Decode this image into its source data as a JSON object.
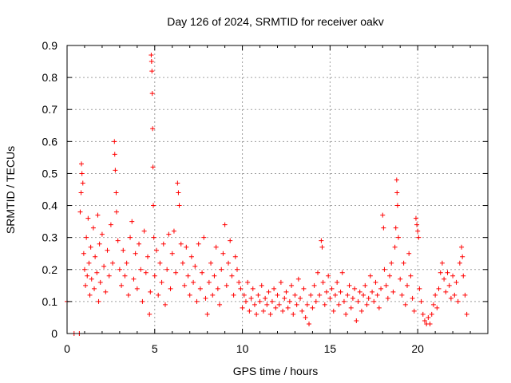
{
  "chart_data": {
    "type": "scatter",
    "title": "Day 126 of 2024, SRMTID for receiver oakv",
    "xlabel": "GPS time / hours",
    "ylabel": "SRMTID / TECUs",
    "xlim": [
      0,
      24
    ],
    "ylim": [
      0,
      0.9
    ],
    "xticks": [
      0,
      5,
      10,
      15,
      20
    ],
    "xtick_labels": [
      "0",
      "5",
      "10",
      "15",
      "20"
    ],
    "yticks": [
      0,
      0.1,
      0.2,
      0.3,
      0.4,
      0.5,
      0.6,
      0.7,
      0.8,
      0.9
    ],
    "ytick_labels": [
      "0",
      "0.1",
      "0.2",
      "0.3",
      "0.4",
      "0.5",
      "0.6",
      "0.7",
      "0.8",
      "0.9"
    ],
    "grid": true,
    "marker": "+",
    "color": "#ff0000",
    "series": [
      {
        "name": "SRMTID",
        "points": [
          [
            0.0,
            0.1
          ],
          [
            0.4,
            0.0
          ],
          [
            0.7,
            0.0
          ],
          [
            0.75,
            0.38
          ],
          [
            0.8,
            0.44
          ],
          [
            0.82,
            0.53
          ],
          [
            0.85,
            0.5
          ],
          [
            0.9,
            0.47
          ],
          [
            0.95,
            0.25
          ],
          [
            1.0,
            0.2
          ],
          [
            1.05,
            0.15
          ],
          [
            1.1,
            0.3
          ],
          [
            1.15,
            0.18
          ],
          [
            1.2,
            0.36
          ],
          [
            1.25,
            0.22
          ],
          [
            1.3,
            0.12
          ],
          [
            1.35,
            0.27
          ],
          [
            1.4,
            0.17
          ],
          [
            1.5,
            0.33
          ],
          [
            1.55,
            0.14
          ],
          [
            1.6,
            0.24
          ],
          [
            1.7,
            0.19
          ],
          [
            1.75,
            0.37
          ],
          [
            1.8,
            0.1
          ],
          [
            1.85,
            0.28
          ],
          [
            1.9,
            0.16
          ],
          [
            2.0,
            0.31
          ],
          [
            2.1,
            0.21
          ],
          [
            2.2,
            0.13
          ],
          [
            2.3,
            0.26
          ],
          [
            2.4,
            0.18
          ],
          [
            2.5,
            0.34
          ],
          [
            2.6,
            0.22
          ],
          [
            2.7,
            0.6
          ],
          [
            2.72,
            0.56
          ],
          [
            2.75,
            0.51
          ],
          [
            2.8,
            0.44
          ],
          [
            2.82,
            0.38
          ],
          [
            2.9,
            0.29
          ],
          [
            3.0,
            0.2
          ],
          [
            3.1,
            0.15
          ],
          [
            3.2,
            0.26
          ],
          [
            3.3,
            0.18
          ],
          [
            3.4,
            0.22
          ],
          [
            3.5,
            0.12
          ],
          [
            3.6,
            0.3
          ],
          [
            3.7,
            0.35
          ],
          [
            3.8,
            0.17
          ],
          [
            3.9,
            0.25
          ],
          [
            4.0,
            0.14
          ],
          [
            4.1,
            0.28
          ],
          [
            4.2,
            0.2
          ],
          [
            4.3,
            0.1
          ],
          [
            4.4,
            0.32
          ],
          [
            4.5,
            0.19
          ],
          [
            4.6,
            0.24
          ],
          [
            4.7,
            0.06
          ],
          [
            4.75,
            0.13
          ],
          [
            4.8,
            0.87
          ],
          [
            4.82,
            0.85
          ],
          [
            4.84,
            0.82
          ],
          [
            4.86,
            0.75
          ],
          [
            4.88,
            0.64
          ],
          [
            4.9,
            0.52
          ],
          [
            4.92,
            0.4
          ],
          [
            4.95,
            0.3
          ],
          [
            5.0,
            0.18
          ],
          [
            5.1,
            0.26
          ],
          [
            5.2,
            0.12
          ],
          [
            5.3,
            0.22
          ],
          [
            5.4,
            0.16
          ],
          [
            5.5,
            0.28
          ],
          [
            5.6,
            0.09
          ],
          [
            5.7,
            0.2
          ],
          [
            5.8,
            0.31
          ],
          [
            5.9,
            0.14
          ],
          [
            6.0,
            0.25
          ],
          [
            6.1,
            0.32
          ],
          [
            6.2,
            0.19
          ],
          [
            6.3,
            0.47
          ],
          [
            6.35,
            0.44
          ],
          [
            6.4,
            0.4
          ],
          [
            6.5,
            0.28
          ],
          [
            6.6,
            0.22
          ],
          [
            6.7,
            0.15
          ],
          [
            6.8,
            0.27
          ],
          [
            6.9,
            0.18
          ],
          [
            7.0,
            0.12
          ],
          [
            7.1,
            0.24
          ],
          [
            7.2,
            0.16
          ],
          [
            7.3,
            0.21
          ],
          [
            7.4,
            0.1
          ],
          [
            7.5,
            0.28
          ],
          [
            7.6,
            0.14
          ],
          [
            7.7,
            0.19
          ],
          [
            7.8,
            0.3
          ],
          [
            7.9,
            0.11
          ],
          [
            8.0,
            0.06
          ],
          [
            8.1,
            0.16
          ],
          [
            8.2,
            0.22
          ],
          [
            8.3,
            0.12
          ],
          [
            8.4,
            0.18
          ],
          [
            8.5,
            0.27
          ],
          [
            8.6,
            0.14
          ],
          [
            8.7,
            0.09
          ],
          [
            8.8,
            0.2
          ],
          [
            8.9,
            0.25
          ],
          [
            9.0,
            0.34
          ],
          [
            9.1,
            0.15
          ],
          [
            9.2,
            0.22
          ],
          [
            9.3,
            0.29
          ],
          [
            9.4,
            0.18
          ],
          [
            9.5,
            0.12
          ],
          [
            9.6,
            0.24
          ],
          [
            9.7,
            0.2
          ],
          [
            9.8,
            0.16
          ],
          [
            9.9,
            0.14
          ],
          [
            10.0,
            0.08
          ],
          [
            10.1,
            0.12
          ],
          [
            10.2,
            0.1
          ],
          [
            10.3,
            0.16
          ],
          [
            10.4,
            0.07
          ],
          [
            10.5,
            0.11
          ],
          [
            10.6,
            0.14
          ],
          [
            10.7,
            0.09
          ],
          [
            10.8,
            0.06
          ],
          [
            10.9,
            0.12
          ],
          [
            11.0,
            0.1
          ],
          [
            11.1,
            0.15
          ],
          [
            11.2,
            0.07
          ],
          [
            11.3,
            0.11
          ],
          [
            11.4,
            0.09
          ],
          [
            11.5,
            0.13
          ],
          [
            11.6,
            0.06
          ],
          [
            11.7,
            0.1
          ],
          [
            11.8,
            0.14
          ],
          [
            11.9,
            0.08
          ],
          [
            12.0,
            0.12
          ],
          [
            12.1,
            0.09
          ],
          [
            12.2,
            0.16
          ],
          [
            12.3,
            0.07
          ],
          [
            12.4,
            0.11
          ],
          [
            12.5,
            0.13
          ],
          [
            12.6,
            0.08
          ],
          [
            12.7,
            0.1
          ],
          [
            12.8,
            0.15
          ],
          [
            12.9,
            0.06
          ],
          [
            13.0,
            0.12
          ],
          [
            13.1,
            0.09
          ],
          [
            13.2,
            0.17
          ],
          [
            13.3,
            0.11
          ],
          [
            13.4,
            0.07
          ],
          [
            13.5,
            0.14
          ],
          [
            13.6,
            0.05
          ],
          [
            13.7,
            0.09
          ],
          [
            13.8,
            0.03
          ],
          [
            13.9,
            0.12
          ],
          [
            14.0,
            0.08
          ],
          [
            14.1,
            0.15
          ],
          [
            14.2,
            0.1
          ],
          [
            14.3,
            0.19
          ],
          [
            14.4,
            0.12
          ],
          [
            14.5,
            0.29
          ],
          [
            14.55,
            0.27
          ],
          [
            14.6,
            0.16
          ],
          [
            14.7,
            0.09
          ],
          [
            14.8,
            0.13
          ],
          [
            14.9,
            0.18
          ],
          [
            15.0,
            0.11
          ],
          [
            15.1,
            0.14
          ],
          [
            15.2,
            0.07
          ],
          [
            15.3,
            0.12
          ],
          [
            15.4,
            0.16
          ],
          [
            15.5,
            0.09
          ],
          [
            15.6,
            0.13
          ],
          [
            15.7,
            0.19
          ],
          [
            15.8,
            0.1
          ],
          [
            15.9,
            0.06
          ],
          [
            16.0,
            0.12
          ],
          [
            16.1,
            0.15
          ],
          [
            16.2,
            0.08
          ],
          [
            16.3,
            0.11
          ],
          [
            16.4,
            0.14
          ],
          [
            16.5,
            0.04
          ],
          [
            16.6,
            0.1
          ],
          [
            16.7,
            0.13
          ],
          [
            16.8,
            0.07
          ],
          [
            16.9,
            0.12
          ],
          [
            17.0,
            0.15
          ],
          [
            17.1,
            0.09
          ],
          [
            17.2,
            0.11
          ],
          [
            17.3,
            0.18
          ],
          [
            17.4,
            0.13
          ],
          [
            17.5,
            0.1
          ],
          [
            17.6,
            0.16
          ],
          [
            17.7,
            0.12
          ],
          [
            17.8,
            0.08
          ],
          [
            17.9,
            0.14
          ],
          [
            18.0,
            0.37
          ],
          [
            18.05,
            0.33
          ],
          [
            18.1,
            0.2
          ],
          [
            18.2,
            0.15
          ],
          [
            18.3,
            0.11
          ],
          [
            18.4,
            0.18
          ],
          [
            18.5,
            0.22
          ],
          [
            18.6,
            0.13
          ],
          [
            18.7,
            0.27
          ],
          [
            18.75,
            0.33
          ],
          [
            18.8,
            0.48
          ],
          [
            18.82,
            0.44
          ],
          [
            18.85,
            0.4
          ],
          [
            18.9,
            0.3
          ],
          [
            19.0,
            0.17
          ],
          [
            19.1,
            0.12
          ],
          [
            19.2,
            0.22
          ],
          [
            19.3,
            0.09
          ],
          [
            19.4,
            0.15
          ],
          [
            19.5,
            0.25
          ],
          [
            19.6,
            0.18
          ],
          [
            19.7,
            0.11
          ],
          [
            19.8,
            0.07
          ],
          [
            19.9,
            0.36
          ],
          [
            19.95,
            0.34
          ],
          [
            20.0,
            0.32
          ],
          [
            20.05,
            0.3
          ],
          [
            20.1,
            0.14
          ],
          [
            20.2,
            0.1
          ],
          [
            20.3,
            0.06
          ],
          [
            20.4,
            0.04
          ],
          [
            20.5,
            0.03
          ],
          [
            20.6,
            0.05
          ],
          [
            20.7,
            0.03
          ],
          [
            20.8,
            0.06
          ],
          [
            20.9,
            0.09
          ],
          [
            21.0,
            0.12
          ],
          [
            21.1,
            0.08
          ],
          [
            21.2,
            0.14
          ],
          [
            21.3,
            0.19
          ],
          [
            21.4,
            0.22
          ],
          [
            21.5,
            0.17
          ],
          [
            21.6,
            0.13
          ],
          [
            21.7,
            0.19
          ],
          [
            21.8,
            0.15
          ],
          [
            21.9,
            0.11
          ],
          [
            22.0,
            0.18
          ],
          [
            22.1,
            0.12
          ],
          [
            22.2,
            0.16
          ],
          [
            22.3,
            0.1
          ],
          [
            22.4,
            0.22
          ],
          [
            22.5,
            0.27
          ],
          [
            22.55,
            0.24
          ],
          [
            22.6,
            0.18
          ],
          [
            22.7,
            0.12
          ],
          [
            22.8,
            0.06
          ]
        ]
      }
    ]
  }
}
